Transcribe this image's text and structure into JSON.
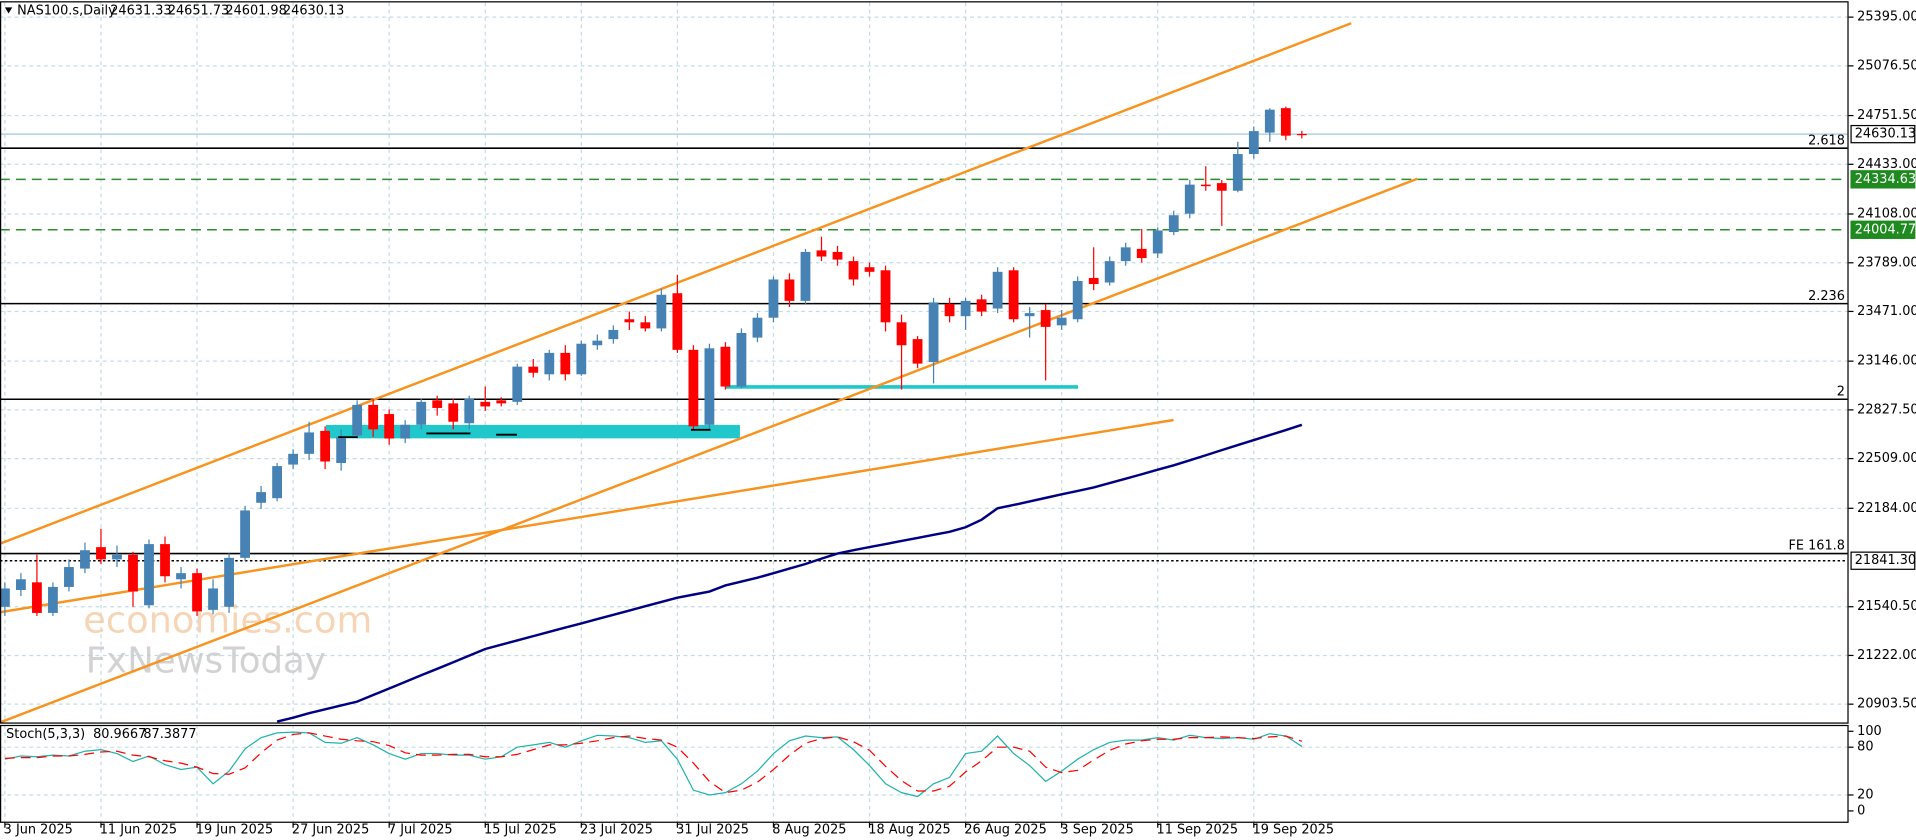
{
  "chart_data": [
    {
      "type": "candlestick",
      "title": "NAS100.s,Daily",
      "categories": [
        "3 Jun 2025",
        null,
        null,
        null,
        null,
        null,
        "11 Jun 2025",
        null,
        null,
        null,
        null,
        null,
        "19 Jun 2025",
        null,
        null,
        null,
        null,
        null,
        "27 Jun 2025",
        null,
        null,
        null,
        null,
        null,
        "7 Jul 2025",
        null,
        null,
        null,
        null,
        null,
        "15 Jul 2025",
        null,
        null,
        null,
        null,
        null,
        "23 Jul 2025",
        null,
        null,
        null,
        null,
        null,
        "31 Jul 2025",
        null,
        null,
        null,
        null,
        null,
        "8 Aug 2025",
        null,
        null,
        null,
        null,
        null,
        "18 Aug 2025",
        null,
        null,
        null,
        null,
        null,
        "26 Aug 2025",
        null,
        null,
        null,
        null,
        null,
        "3 Sep 2025",
        null,
        null,
        null,
        null,
        null,
        "11 Sep 2025",
        null,
        null,
        null,
        null,
        null,
        "19 Sep 2025",
        null,
        null,
        null
      ],
      "open": [
        21540,
        21650,
        21700,
        21500,
        21670,
        21790,
        21930,
        21850,
        21880,
        21550,
        21950,
        21720,
        21760,
        21520,
        21540,
        21860,
        22220,
        22250,
        22470,
        22540,
        22690,
        22480,
        22660,
        22860,
        22800,
        22640,
        22730,
        22890,
        22870,
        22740,
        22880,
        22890,
        22880,
        23110,
        23060,
        23200,
        23060,
        23250,
        23290,
        23420,
        23400,
        23360,
        23590,
        23220,
        22730,
        23240,
        22980,
        23300,
        23430,
        23680,
        23540,
        23870,
        23860,
        23800,
        23760,
        23740,
        23400,
        23290,
        23140,
        23520,
        23440,
        23550,
        23490,
        23740,
        23440,
        23480,
        23380,
        23420,
        23690,
        23660,
        23800,
        23880,
        23850,
        23990,
        24110,
        24300,
        24310,
        24260,
        24500,
        24640,
        24800,
        24631.33
      ],
      "high": [
        21700,
        21760,
        21880,
        21700,
        21850,
        21960,
        22050,
        21940,
        21900,
        21980,
        22000,
        21800,
        21790,
        21720,
        21890,
        22200,
        22330,
        22480,
        22570,
        22750,
        22720,
        22700,
        22890,
        22900,
        22830,
        22760,
        22900,
        22920,
        22900,
        22920,
        22980,
        22910,
        23130,
        23160,
        23220,
        23250,
        23280,
        23320,
        23380,
        23470,
        23440,
        23620,
        23710,
        23250,
        23260,
        23270,
        23360,
        23460,
        23700,
        23720,
        23880,
        23960,
        23900,
        23830,
        23790,
        23770,
        23450,
        23310,
        23560,
        23560,
        23560,
        23580,
        23760,
        23760,
        23500,
        23520,
        23480,
        23700,
        23890,
        23830,
        23920,
        24010,
        24020,
        24130,
        24330,
        24420,
        24330,
        24580,
        24680,
        24800,
        24810,
        24651.73
      ],
      "low": [
        21480,
        21610,
        21480,
        21480,
        21640,
        21760,
        21820,
        21800,
        21540,
        21530,
        21700,
        21660,
        21480,
        21490,
        21500,
        21840,
        22180,
        22230,
        22440,
        22500,
        22440,
        22430,
        22640,
        22650,
        22600,
        22610,
        22700,
        22790,
        22700,
        22700,
        22820,
        22850,
        22860,
        23040,
        23020,
        23020,
        23050,
        23220,
        23260,
        23350,
        23340,
        23340,
        23200,
        22700,
        22700,
        22960,
        22970,
        23270,
        23400,
        23500,
        23520,
        23800,
        23770,
        23640,
        23700,
        23340,
        22960,
        23100,
        23000,
        23400,
        23350,
        23440,
        23460,
        23400,
        23300,
        23020,
        23350,
        23400,
        23610,
        23640,
        23770,
        23790,
        23820,
        23970,
        24080,
        24260,
        24030,
        24250,
        24470,
        24580,
        24590,
        24601.98
      ],
      "close": [
        21660,
        21720,
        21500,
        21670,
        21800,
        21910,
        21850,
        21880,
        21640,
        21950,
        21740,
        21760,
        21510,
        21660,
        21860,
        22170,
        22290,
        22460,
        22540,
        22680,
        22490,
        22650,
        22860,
        22700,
        22640,
        22730,
        22880,
        22840,
        22750,
        22900,
        22850,
        22870,
        23110,
        23070,
        23200,
        23060,
        23260,
        23280,
        23350,
        23400,
        23360,
        23580,
        23220,
        22720,
        23230,
        22980,
        23330,
        23430,
        23680,
        23540,
        23860,
        23830,
        23810,
        23680,
        23730,
        23400,
        23250,
        23130,
        23530,
        23440,
        23540,
        23470,
        23730,
        23420,
        23460,
        23370,
        23430,
        23670,
        23650,
        23800,
        23890,
        23820,
        24000,
        24100,
        24300,
        24290,
        24260,
        24500,
        24650,
        24790,
        24620,
        24630.13
      ],
      "up_color": "#4682b4",
      "down_color": "#ff0000",
      "ma": {
        "color": "#000080",
        "values": [
          null,
          null,
          null,
          null,
          null,
          null,
          null,
          null,
          null,
          null,
          null,
          null,
          null,
          null,
          null,
          null,
          null,
          20790,
          20815,
          20845,
          20870,
          20895,
          20920,
          20963,
          21006,
          21049,
          21092,
          21135,
          21178,
          21221,
          21264,
          21292,
          21320,
          21348,
          21376,
          21404,
          21432,
          21460,
          21488,
          21516,
          21544,
          21572,
          21600,
          21620,
          21640,
          21680,
          21705,
          21730,
          21760,
          21790,
          21820,
          21855,
          21888,
          21910,
          21930,
          21950,
          21970,
          21990,
          22010,
          22030,
          22060,
          22110,
          22184,
          22206,
          22229,
          22252,
          22275,
          22298,
          22320,
          22349,
          22378,
          22407,
          22436,
          22465,
          22498,
          22531,
          22564,
          22597,
          22630,
          22663,
          22696,
          22730
        ]
      },
      "ylim": [
        20784,
        25491
      ],
      "yticks": [
        {
          "value": 25395,
          "label": "25395.00"
        },
        {
          "value": 25076.5,
          "label": "25076.50"
        },
        {
          "value": 24751.5,
          "label": "24751.50"
        },
        {
          "value": 24433,
          "label": "24433.00"
        },
        {
          "value": 24108,
          "label": "24108.00"
        },
        {
          "value": 23789,
          "label": "23789.00"
        },
        {
          "value": 23471,
          "label": "23471.00"
        },
        {
          "value": 23146,
          "label": "23146.00"
        },
        {
          "value": 22827.5,
          "label": "22827.50"
        },
        {
          "value": 22509,
          "label": "22509.00"
        },
        {
          "value": 22184,
          "label": "22184.00"
        },
        {
          "value": 21540.5,
          "label": "21540.50"
        },
        {
          "value": 21222,
          "label": "21222.00"
        },
        {
          "value": 20903.5,
          "label": "20903.50"
        }
      ],
      "grid": true,
      "price_lines": [
        {
          "value": 24630.13,
          "color": "#b0cfe0",
          "style": "solid",
          "box": "#ffffff",
          "box_text": "#000000"
        },
        {
          "value": 24334.63,
          "color": "#2e8b2e",
          "style": "dashed",
          "box": "#1f8a1f",
          "box_text": "#ffffff"
        },
        {
          "value": 24004.77,
          "color": "#2e8b2e",
          "style": "dashed",
          "box": "#1f8a1f",
          "box_text": "#ffffff"
        },
        {
          "value": 21841.3,
          "label": "21841.30",
          "color": "#000000",
          "style": "dotted",
          "box": "#ffffff",
          "box_text": "#000000"
        }
      ],
      "fib_levels": [
        {
          "label": "2.618",
          "value": 24538
        },
        {
          "label": "2.236",
          "value": 23522
        },
        {
          "label": "2",
          "value": 22897
        },
        {
          "label": "FE 161.8",
          "value": 21888
        }
      ],
      "watermark": [
        "economies.com",
        "FxNewsToday"
      ]
    },
    {
      "type": "line",
      "title": "Stoch(5,3,3)",
      "series": [
        {
          "color": "#20b2aa",
          "style": "solid",
          "values": [
            65,
            69,
            68,
            70,
            69,
            75,
            77,
            72,
            62,
            69,
            58,
            52,
            55,
            34,
            50,
            78,
            92,
            98,
            99,
            98,
            86,
            85,
            92,
            83,
            72,
            65,
            72,
            72,
            70,
            70,
            65,
            68,
            80,
            83,
            86,
            80,
            88,
            95,
            94,
            92,
            86,
            88,
            65,
            26,
            20,
            23,
            34,
            50,
            72,
            88,
            94,
            92,
            93,
            77,
            57,
            34,
            23,
            18,
            34,
            42,
            72,
            75,
            94,
            72,
            57,
            37,
            50,
            65,
            77,
            86,
            89,
            89,
            92,
            89,
            95,
            92,
            91,
            92,
            90,
            97,
            94,
            80.9667
          ]
        },
        {
          "color": "#ff0000",
          "style": "dashed",
          "values": [
            66,
            67,
            67,
            69,
            69,
            71,
            74,
            75,
            70,
            68,
            63,
            60,
            55,
            47,
            46,
            54,
            73,
            89,
            96,
            98,
            94,
            90,
            88,
            87,
            82,
            73,
            70,
            70,
            71,
            71,
            68,
            68,
            71,
            77,
            83,
            83,
            85,
            88,
            92,
            94,
            91,
            89,
            80,
            60,
            37,
            23,
            26,
            36,
            52,
            70,
            85,
            91,
            93,
            87,
            76,
            56,
            38,
            25,
            25,
            31,
            49,
            63,
            80,
            80,
            75,
            55,
            48,
            51,
            64,
            76,
            84,
            88,
            90,
            90,
            92,
            92,
            93,
            92,
            91,
            93,
            94,
            87.3877
          ]
        }
      ],
      "ylim": [
        -15,
        108
      ],
      "yticks": [
        0,
        20,
        80,
        100
      ]
    }
  ]
}
